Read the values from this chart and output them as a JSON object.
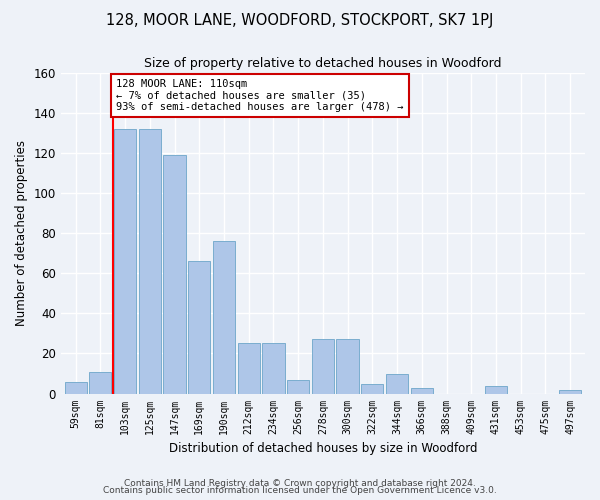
{
  "title": "128, MOOR LANE, WOODFORD, STOCKPORT, SK7 1PJ",
  "subtitle": "Size of property relative to detached houses in Woodford",
  "xlabel": "Distribution of detached houses by size in Woodford",
  "ylabel": "Number of detached properties",
  "categories": [
    "59sqm",
    "81sqm",
    "103sqm",
    "125sqm",
    "147sqm",
    "169sqm",
    "190sqm",
    "212sqm",
    "234sqm",
    "256sqm",
    "278sqm",
    "300sqm",
    "322sqm",
    "344sqm",
    "366sqm",
    "388sqm",
    "409sqm",
    "431sqm",
    "453sqm",
    "475sqm",
    "497sqm"
  ],
  "values": [
    6,
    11,
    132,
    132,
    119,
    66,
    76,
    25,
    25,
    7,
    27,
    27,
    5,
    10,
    3,
    0,
    0,
    4,
    0,
    0,
    2
  ],
  "bar_color": "#aec6e8",
  "bar_edge_color": "#7aadcf",
  "red_line_index": 2,
  "annotation_text": "128 MOOR LANE: 110sqm\n← 7% of detached houses are smaller (35)\n93% of semi-detached houses are larger (478) →",
  "annotation_box_color": "#ffffff",
  "annotation_box_edge_color": "#cc0000",
  "footer1": "Contains HM Land Registry data © Crown copyright and database right 2024.",
  "footer2": "Contains public sector information licensed under the Open Government Licence v3.0.",
  "bg_color": "#eef2f8",
  "plot_bg_color": "#eef2f8",
  "grid_color": "#ffffff",
  "ylim": [
    0,
    160
  ],
  "yticks": [
    0,
    20,
    40,
    60,
    80,
    100,
    120,
    140,
    160
  ]
}
